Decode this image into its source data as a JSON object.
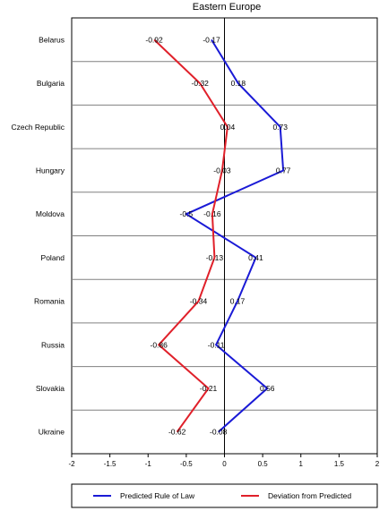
{
  "chart_data": {
    "type": "line",
    "title": "Eastern Europe",
    "categories": [
      "Belarus",
      "Bulgaria",
      "Czech Republic",
      "Hungary",
      "Moldova",
      "Poland",
      "Romania",
      "Russia",
      "Slovakia",
      "Ukraine"
    ],
    "series": [
      {
        "name": "Predicted Rule of Law",
        "color": "#1a1ad6",
        "values": [
          -0.17,
          0.18,
          0.73,
          0.77,
          -0.5,
          0.41,
          0.17,
          -0.11,
          0.56,
          -0.08
        ],
        "labels": [
          "-0.17",
          "0.18",
          "0.73",
          "0.77",
          "-0.5",
          "0.41",
          "0.17",
          "-0.11",
          "0.56",
          "-0.08"
        ]
      },
      {
        "name": "Deviation from Predicted",
        "color": "#e0202a",
        "values": [
          -0.92,
          -0.32,
          0.04,
          -0.03,
          -0.16,
          -0.13,
          -0.34,
          -0.86,
          -0.21,
          -0.62
        ],
        "labels": [
          "-0.92",
          "-0.32",
          "0.04",
          "-0.03",
          "-0.16",
          "-0.13",
          "-0.34",
          "-0.86",
          "-0.21",
          "-0.62"
        ]
      }
    ],
    "xlim": [
      -2,
      2
    ],
    "xticks": [
      -2,
      -1.5,
      -1,
      -0.5,
      0,
      0.5,
      1,
      1.5,
      2
    ],
    "xtick_labels": [
      "-2",
      "-1.5",
      "-1",
      "-0.5",
      "0",
      "0.5",
      "1",
      "1.5",
      "2"
    ],
    "reference_line_x": 0,
    "legend_position": "bottom"
  }
}
